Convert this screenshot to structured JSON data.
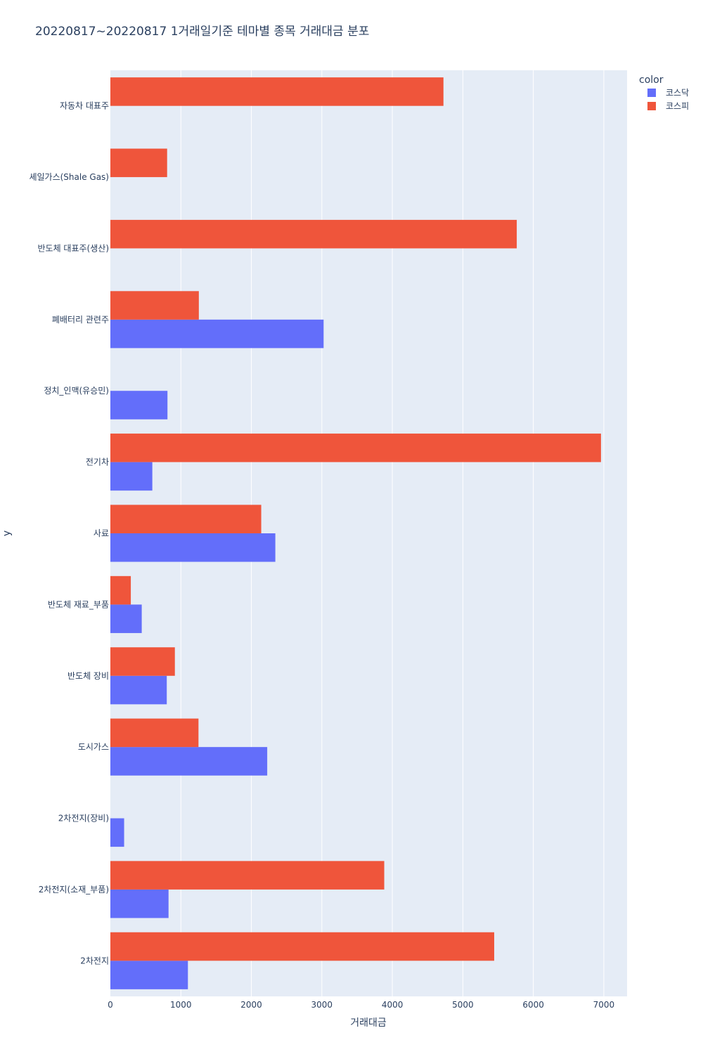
{
  "chart_data": {
    "type": "bar",
    "orientation": "horizontal",
    "barmode": "group",
    "title": "20220817~20220817 1거래일기준 테마별 종목 거래대금 분포",
    "xlabel": "거래대금",
    "ylabel": "y",
    "xlim": [
      0,
      7330
    ],
    "xticks": [
      0,
      1000,
      2000,
      3000,
      4000,
      5000,
      6000,
      7000
    ],
    "xtick_labels": [
      "0",
      "1000",
      "2000",
      "3000",
      "4000",
      "5000",
      "6000",
      "7000"
    ],
    "grid": true,
    "categories": [
      "2차전지",
      "2차전지(소재_부품)",
      "2차전지(장비)",
      "도시가스",
      "반도체 장비",
      "반도체 재료_부품",
      "사료",
      "전기차",
      "정치_인맥(유승민)",
      "폐배터리 관련주",
      "반도체 대표주(생산)",
      "셰일가스(Shale Gas)",
      "자동차 대표주"
    ],
    "series": [
      {
        "name": "코스닥",
        "color": "#636efa",
        "values": [
          1100,
          825,
          195,
          2225,
          800,
          445,
          2340,
          595,
          810,
          3025,
          null,
          null,
          null
        ]
      },
      {
        "name": "코스피",
        "color": "#ef553b",
        "values": [
          5445,
          3885,
          null,
          1250,
          915,
          290,
          2140,
          6960,
          null,
          1255,
          5765,
          805,
          4725
        ]
      }
    ],
    "legend": {
      "title": "color",
      "placement": "top-right"
    },
    "colors": {
      "plot_bg": "#e5ecf6",
      "grid": "#ffffff",
      "text": "#2a3f5f"
    }
  }
}
